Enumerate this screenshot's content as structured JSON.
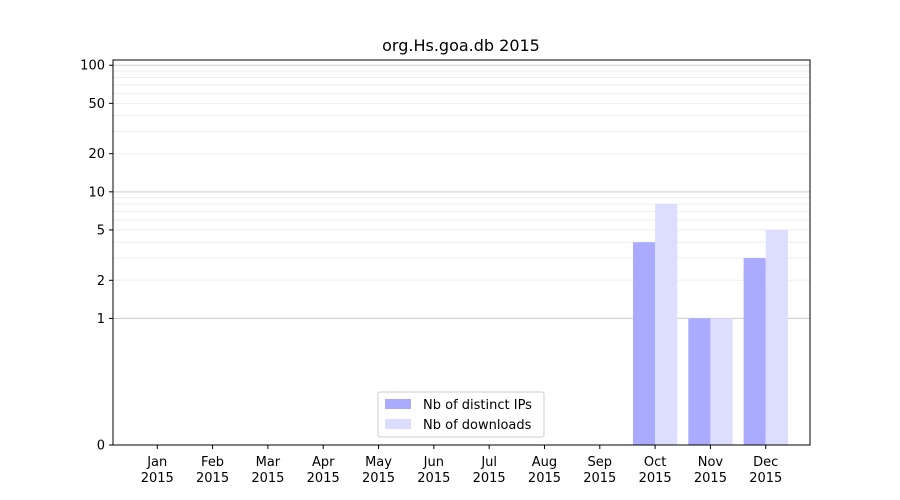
{
  "chart_data": {
    "type": "bar",
    "title": "org.Hs.goa.db 2015",
    "yscale": "symlog",
    "ylim": [
      0,
      110
    ],
    "yticks": [
      0,
      1,
      2,
      5,
      10,
      20,
      50,
      100
    ],
    "categories": [
      [
        "Jan",
        "2015"
      ],
      [
        "Feb",
        "2015"
      ],
      [
        "Mar",
        "2015"
      ],
      [
        "Apr",
        "2015"
      ],
      [
        "May",
        "2015"
      ],
      [
        "Jun",
        "2015"
      ],
      [
        "Jul",
        "2015"
      ],
      [
        "Aug",
        "2015"
      ],
      [
        "Sep",
        "2015"
      ],
      [
        "Oct",
        "2015"
      ],
      [
        "Nov",
        "2015"
      ],
      [
        "Dec",
        "2015"
      ]
    ],
    "series": [
      {
        "name": "Nb of distinct IPs",
        "color": "#aaaaff",
        "values": [
          0,
          0,
          0,
          0,
          0,
          0,
          0,
          0,
          0,
          4,
          1,
          3
        ]
      },
      {
        "name": "Nb of downloads",
        "color": "#ddddff",
        "values": [
          0,
          0,
          0,
          0,
          0,
          0,
          0,
          0,
          0,
          8,
          1,
          5
        ]
      }
    ],
    "legend": "bottom-center",
    "grid": true
  }
}
